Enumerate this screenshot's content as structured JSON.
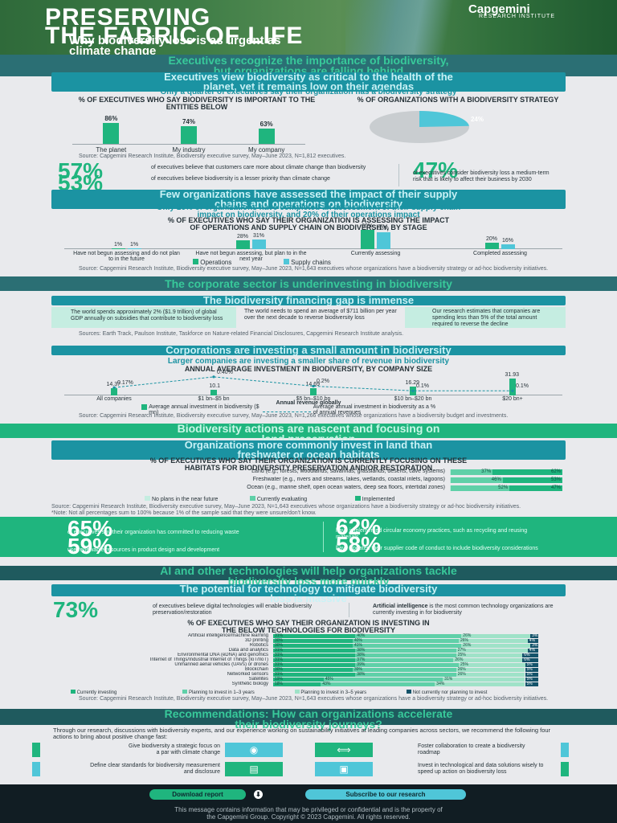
{
  "header": {
    "title_line1": "PRESERVING",
    "title_line2": "THE FABRIC OF LIFE",
    "subtitle_line1": "Why biodiversity loss is as urgent as",
    "subtitle_line2": "climate change",
    "logo": "Capgemini",
    "logo_sub": "RESEARCH INSTITUTE"
  },
  "section1": {
    "band_line1": "Executives recognize the importance of biodiversity,",
    "band_line2": "but organizations are falling behind",
    "pill_line1": "Executives view biodiversity as critical to the health of the",
    "pill_line2": "planet, yet it remains low on their agendas",
    "intro": "Only a quarter of executives say their organization has a biodiversity strategy",
    "left_caption": "% OF EXECUTIVES WHO SAY BIODIVERSITY IS IMPORTANT TO THE ENTITIES BELOW",
    "right_caption": "% OF ORGANIZATIONS WITH A BIODIVERSITY STRATEGY",
    "pie_label": "24%",
    "pie_value": 24,
    "source": "Source: Capgemini Research Institute, Biodiversity executive survey, May–June 2023, N=1,812 executives.",
    "stats": [
      {
        "value": "57%",
        "text": "of executives believe that customers care more about climate change than biodiversity"
      },
      {
        "value": "53%",
        "text": "of executives believe biodiversity is a lesser priority than climate change"
      },
      {
        "value": "47%",
        "text": "of executives consider biodiversity loss a medium-term risk that is likely to affect their business by 2030"
      }
    ]
  },
  "chart_importance": {
    "type": "bar",
    "categories": [
      "The planet",
      "My industry",
      "My company"
    ],
    "values": [
      86,
      74,
      63
    ],
    "labels": [
      "86%",
      "74%",
      "63%"
    ]
  },
  "section2": {
    "pill_line1": "Few organizations have assessed the impact of their supply",
    "pill_line2": "chains and operations on biodiversity",
    "intro_line1": "Only 16% of organizations have completed an assessment of their supply chain",
    "intro_line2": "impact on biodiversity, and 20% of their operations impact",
    "caption_line1": "% OF EXECUTIVES WHO SAY THEIR ORGANIZATION IS ASSESSING THE IMPACT",
    "caption_line2": "OF OPERATIONS AND SUPPLY CHAIN ON BIODIVERSITY, BY STAGE",
    "source": "Source: Capgemini Research Institute, Biodiversity executive survey, May–June 2023, N=1,643 executives whose organizations have a biodiversity strategy or ad-hoc biodiversity initiatives."
  },
  "chart_assessment": {
    "type": "bar",
    "categories": [
      "Have not begun assessing and do not plan to in the future",
      "Have not begun assessing, but plan to in the next year",
      "Currently assessing",
      "Completed assessing"
    ],
    "series": [
      {
        "name": "Operations",
        "values": [
          1,
          28,
          60,
          20
        ],
        "labels": [
          "1%",
          "28%",
          "60%",
          "20%"
        ]
      },
      {
        "name": "Supply chains",
        "values": [
          1,
          31,
          53,
          16
        ],
        "labels": [
          "1%",
          "31%",
          "53%",
          "16%"
        ]
      }
    ],
    "colors": {
      "Operations": "#1fb57e",
      "Supply chains": "#4fc6d8"
    }
  },
  "section3": {
    "band": "The corporate sector is underinvesting in biodiversity",
    "pill1": "The biodiversity financing gap is immense",
    "cards": [
      "The world spends approximately 2% ($1.9 trillion) of global GDP annually on subsidies that contribute to biodiversity loss",
      "The world needs to spend an average of $711 billion per year over the next decade to reverse biodiversity loss",
      "Our research estimates that companies are spending less than 5% of the total amount required to reverse the decline"
    ],
    "cards_source": "Sources: Earth Track, Paulson Institute, Taskforce on Nature-related Financial Disclosures, Capgemini Research Institute analysis.",
    "pill2": "Corporations are investing a small amount in biodiversity",
    "intro": "Larger companies are investing a smaller share of revenue in biodiversity",
    "caption": "ANNUAL AVERAGE INVESTMENT IN BIODIVERSITY, BY COMPANY SIZE",
    "source": "Source: Capgemini Research Institute, Biodiversity executive survey, May–June 2023, N=1,266 executives whose organizations have a biodiversity budget and investments."
  },
  "chart_investment": {
    "type": "bar",
    "xlabel": "Annual revenue globally",
    "categories": [
      "All companies",
      "$1 bn–$5 bn",
      "$5 bn–$10 bn",
      "$10 bn–$20 bn",
      "$20 bn+"
    ],
    "series": [
      {
        "name": "Average annual investment in biodiversity ($ mn)",
        "values": [
          14.37,
          10.1,
          14.69,
          16.29,
          31.93
        ],
        "labels": [
          "14.37",
          "10.1",
          "14.69",
          "16.29",
          "31.93"
        ]
      },
      {
        "name": "Average annual investment in biodiversity as a % of annual revenues",
        "values": [
          0.17,
          0.4,
          0.2,
          0.1,
          0.1
        ],
        "labels": [
          "0.17%",
          "0.40%",
          "0.2%",
          "0.1%",
          "0.1%"
        ]
      }
    ]
  },
  "section4": {
    "band_line1": "Biodiversity actions are nascent and focusing on",
    "band_line2": "land preservation",
    "pill_line1": "Organizations more commonly invest in land than",
    "pill_line2": "freshwater or ocean habitats",
    "caption_line1": "% OF EXECUTIVES WHO SAY THEIR ORGANIZATION IS CURRENTLY FOCUSING ON THESE",
    "caption_line2": "HABITATS FOR BIODIVERSITY PRESERVATION AND/OR RESTORATION",
    "legend": [
      "No plans in the near future",
      "Currently evaluating",
      "Implemented"
    ],
    "source": "Source: Capgemini Research Institute, Biodiversity executive survey, May–June 2023, N=1,643 executives whose organizations have a biodiversity strategy or ad-hoc biodiversity initiatives. *Note: Not all percentages sum to 100% because 1% of the sample said that they were unsure/don't know.",
    "stats": [
      {
        "value": "65%",
        "text": "of executives say their organization has committed to reducing waste"
      },
      {
        "value": "62%",
        "text": "have implemented circular economy practices, such as recycling and reusing materials"
      },
      {
        "value": "59%",
        "text": "use renewable resources in product design and development"
      },
      {
        "value": "58%",
        "text": "have updated their supplier code of conduct to include biodiversity considerations"
      }
    ]
  },
  "chart_habitats": {
    "type": "bar",
    "categories": [
      "Land (e.g., forests, woodlands, savannas, grasslands, deserts, cave systems)",
      "Freshwater (e.g., rivers and streams, lakes, wetlands, coastal inlets, lagoons)",
      "Ocean (e.g., marine shelf, open ocean waters, deep sea floors, intertidal zones)"
    ],
    "series": [
      {
        "name": "No plans in the near future",
        "values": [
          1,
          1,
          1
        ]
      },
      {
        "name": "Currently evaluating",
        "values": [
          37,
          46,
          52
        ]
      },
      {
        "name": "Implemented",
        "values": [
          62,
          53,
          47
        ]
      }
    ],
    "labels": [
      [
        "",
        "37%",
        "62%"
      ],
      [
        "",
        "46%",
        "53%"
      ],
      [
        "",
        "52%",
        "47%"
      ]
    ]
  },
  "section5": {
    "band_line1": "AI and other technologies will help organizations tackle",
    "band_line2": "biodiversity loss more quickly",
    "pill_line1": "The potential for technology to mitigate biodiversity",
    "pill_line2": "loss is massive",
    "stat_value": "73%",
    "stat_text": "of executives believe digital technologies will enable biodiversity preservation/restoration",
    "ai_title": "Artificial intelligence",
    "ai_text": "is the most common technology organizations are currently investing in for biodiversity",
    "caption_line1": "% OF EXECUTIVES WHO SAY THEIR ORGANIZATION IS INVESTING IN",
    "caption_line2": "THE BELOW TECHNOLOGIES FOR BIODIVERSITY",
    "legend": [
      "Currently investing",
      "Planning to invest in 1–3 years",
      "Planning to invest in 3–5 years",
      "Not currently nor planning to invest"
    ],
    "source": "Source: Capgemini Research Institute, Biodiversity executive survey, May–June 2023, N=1,643 executives whose organizations have a biodiversity strategy or ad-hoc biodiversity initiatives."
  },
  "chart_tech": {
    "type": "bar",
    "categories": [
      "Artificial intelligence/machine learning",
      "3D printing",
      "Robotics",
      "Data and analytics",
      "Environmental DNA (eDNA) and genomics",
      "Internet of Things/Industrial Internet of Things (IoT/IIoT)",
      "Unmanned aerial vehicles (UAVs) or drones",
      "Blockchain",
      "Networked sensors",
      "Satellites",
      "Synthetic biology"
    ],
    "series": [
      {
        "name": "Currently investing",
        "values": [
          31,
          30,
          30,
          31,
          31,
          31,
          31,
          30,
          31,
          19,
          18
        ]
      },
      {
        "name": "Planning to invest in 1–3 years",
        "values": [
          40,
          40,
          41,
          38,
          38,
          37,
          39,
          39,
          38,
          45,
          43
        ]
      },
      {
        "name": "Planning to invest in 3–5 years",
        "values": [
          26,
          26,
          26,
          27,
          25,
          26,
          25,
          26,
          26,
          31,
          34
        ]
      },
      {
        "name": "Not currently nor planning to invest",
        "values": [
          3,
          4,
          3,
          4,
          6,
          6,
          5,
          5,
          5,
          5,
          5
        ]
      }
    ]
  },
  "section6": {
    "band_line1": "Recommendations: How can organizations accelerate",
    "band_line2": "their biodiversity journeys?",
    "intro": "Through our research, discussions with biodiversity experts, and our experience working on sustainability initiatives at leading companies across sectors, we recommend the following four actions to bring about positive change fast:",
    "recs": [
      "Give biodiversity a strategic focus on a par with climate change",
      "Foster collaboration to create a biodiversity roadmap",
      "Define clear standards for biodiversity measurement and disclosure",
      "Invest in technological and data solutions wisely to speed up action on biodiversity loss"
    ],
    "rec_icons": [
      "globe-icon",
      "handshake-icon",
      "document-icon",
      "chip-icon"
    ]
  },
  "footer": {
    "download": "Download report",
    "subscribe": "Subscribe to our research",
    "disclaimer_line1": "This message contains information that may be privileged or confidential and is the property of",
    "disclaimer_line2": "the Capgemini Group. Copyright © 2023 Capgemini. All rights reserved."
  }
}
